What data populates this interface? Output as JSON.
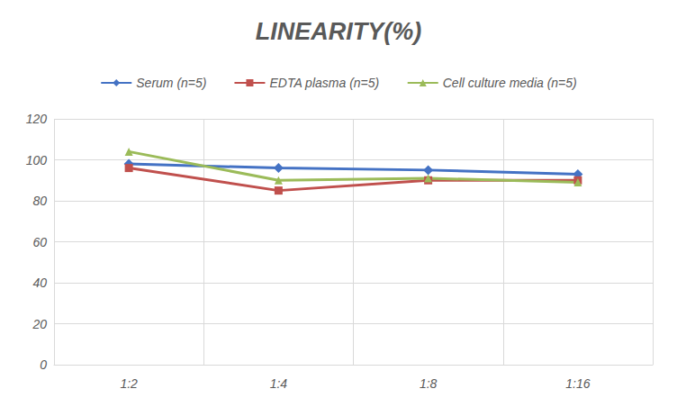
{
  "chart_data": {
    "type": "line",
    "title": "LINEARITY(%)",
    "categories": [
      "1:2",
      "1:4",
      "1:8",
      "1:16"
    ],
    "series": [
      {
        "name": "Serum (n=5)",
        "color": "#4472c4",
        "marker": "diamond",
        "values": [
          98,
          96,
          95,
          93
        ]
      },
      {
        "name": "EDTA plasma (n=5)",
        "color": "#c0504d",
        "marker": "square",
        "values": [
          96,
          85,
          90,
          90
        ]
      },
      {
        "name": "Cell culture media (n=5)",
        "color": "#9bbb59",
        "marker": "triangle",
        "values": [
          104,
          90,
          91,
          89
        ]
      }
    ],
    "ylim": [
      0,
      120
    ],
    "yticks": [
      0,
      20,
      40,
      60,
      80,
      100,
      120
    ],
    "grid": true,
    "legend": "top"
  }
}
